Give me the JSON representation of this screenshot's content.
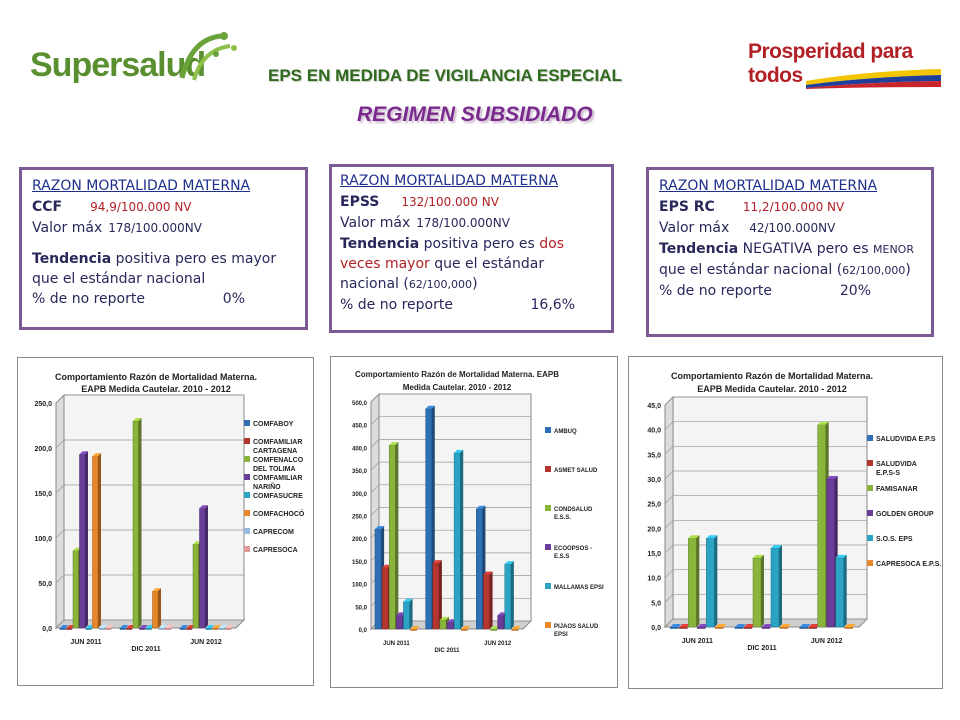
{
  "header": {
    "logo_text": "Supersalud",
    "slogan": "Prosperidad para todos",
    "title": "EPS EN MEDIDA DE VIGILANCIA ESPECIAL",
    "subtitle": "REGIMEN SUBSIDIADO"
  },
  "boxes": [
    {
      "heading": "RAZON MORTALIDAD MATERNA",
      "name": "CCF",
      "name_value": "94,9/100.000 NV",
      "max_label": "Valor máx",
      "max_value": "178/100.000NV",
      "trend_label": "Tendencia",
      "trend_text": "positiva pero es mayor que el estándar nacional",
      "report_label": "% de no reporte",
      "report_value": "0%"
    },
    {
      "heading": "RAZON MORTALIDAD MATERNA",
      "name": "EPSS",
      "name_value": "132/100.000 NV",
      "max_label": "Valor máx",
      "max_value": "178/100.000NV",
      "trend_label": "Tendencia",
      "trend_text_a": "positiva pero es",
      "trend_text_red": "dos veces mayor",
      "trend_text_b": "que el estándar nacional (",
      "trend_small": "62/100,000",
      "trend_close": ")",
      "report_label": "% de no reporte",
      "report_value": "16,6%"
    },
    {
      "heading": "RAZON MORTALIDAD MATERNA",
      "name": "EPS RC",
      "name_value": "11,2/100.000 NV",
      "max_label": "Valor máx",
      "max_value": "42/100.000NV",
      "trend_label": "Tendencia",
      "trend_text_a": "NEGATIVA pero es",
      "trend_small_a": "MENOR",
      "trend_text_b": "que el estándar nacional (",
      "trend_small": "62/100,000",
      "trend_close": ")",
      "report_label": "% de no reporte",
      "report_value": "20%"
    }
  ],
  "chart_data": [
    {
      "type": "bar",
      "title": "Comportamiento Razón de Mortalidad Materna. EAPB Medida Cautelar. 2010 - 2012",
      "title_lines": [
        "Comportamiento Razón de Mortalidad Materna.",
        "EAPB Medida Cautelar. 2010 - 2012"
      ],
      "categories": [
        "JUN 2011",
        "DIC 2011",
        "JUN 2012"
      ],
      "ylim": [
        0,
        250
      ],
      "yticks": [
        "0,0",
        "50,0",
        "100,0",
        "150,0",
        "200,0",
        "250,0"
      ],
      "grid": true,
      "legend_position": "right",
      "series": [
        {
          "name": "COMFABOY",
          "color": "#2f6fb5",
          "values": [
            0,
            0,
            0
          ]
        },
        {
          "name": "COMFAMILIAR CARTAGENA",
          "color": "#b5352f",
          "values": [
            0,
            0,
            0
          ]
        },
        {
          "name": "COMFENALCO DEL TOLIMA",
          "color": "#8ab43c",
          "values": [
            86,
            230,
            93
          ]
        },
        {
          "name": "COMFAMILIAR NARIÑO",
          "color": "#6a3d9a",
          "values": [
            193,
            0,
            133
          ]
        },
        {
          "name": "COMFASUCRE",
          "color": "#2aa3c4",
          "values": [
            0,
            0,
            0
          ]
        },
        {
          "name": "COMFACHOCÓ",
          "color": "#e8862a",
          "values": [
            191,
            41,
            0
          ]
        },
        {
          "name": "CAPRECOM",
          "color": "#9ab9e0",
          "values": [
            0,
            0,
            0
          ]
        },
        {
          "name": "CAPRESOCA",
          "color": "#e39a9a",
          "values": [
            0,
            0,
            0
          ]
        }
      ]
    },
    {
      "type": "bar",
      "title": "Comportamiento Razón de Mortalidad Materna. EAPB Medida Cautelar. 2010 - 2012",
      "title_lines": [
        "Comportamiento Razón de Mortalidad Materna. EAPB",
        "Medida Cautelar. 2010 - 2012"
      ],
      "categories": [
        "JUN 2011",
        "DIC 2011",
        "JUN 2012"
      ],
      "ylim": [
        0,
        500
      ],
      "yticks": [
        "0,0",
        "50,0",
        "100,0",
        "150,0",
        "200,0",
        "250,0",
        "300,0",
        "350,0",
        "400,0",
        "450,0",
        "500,0"
      ],
      "grid": true,
      "legend_position": "right",
      "series": [
        {
          "name": "AMBUQ",
          "color": "#2f6fb5",
          "values": [
            220,
            485,
            265
          ]
        },
        {
          "name": "ASMET SALUD",
          "color": "#b5352f",
          "values": [
            135,
            145,
            120
          ]
        },
        {
          "name": "CONDSALUD E.S.S.",
          "color": "#8ab43c",
          "values": [
            405,
            20,
            0
          ]
        },
        {
          "name": "ECOOPSOS - E.S.S",
          "color": "#6a3d9a",
          "values": [
            30,
            15,
            30
          ]
        },
        {
          "name": "MALLAMAS EPSI",
          "color": "#2aa3c4",
          "values": [
            60,
            388,
            143
          ]
        },
        {
          "name": "PIJAOS SALUD EPSI",
          "color": "#e8862a",
          "values": [
            0,
            0,
            0
          ]
        }
      ]
    },
    {
      "type": "bar",
      "title": "Comportamiento Razón de Mortalidad Materna. EAPB Medida Cautelar. 2010 - 2012",
      "title_lines": [
        "Comportamiento Razón de Mortalidad Materna.",
        "EAPB Medida Cautelar. 2010 - 2012"
      ],
      "categories": [
        "JUN 2011",
        "DIC 2011",
        "JUN 2012"
      ],
      "ylim": [
        0,
        45
      ],
      "yticks": [
        "0,0",
        "5,0",
        "10,0",
        "15,0",
        "20,0",
        "25,0",
        "30,0",
        "35,0",
        "40,0",
        "45,0"
      ],
      "grid": true,
      "legend_position": "right",
      "series": [
        {
          "name": "SALUDVIDA E.P.S",
          "color": "#2f6fb5",
          "values": [
            0,
            0,
            0
          ]
        },
        {
          "name": "SALUDVIDA E.P.S-S",
          "color": "#b5352f",
          "values": [
            0,
            0,
            0
          ]
        },
        {
          "name": "FAMISANAR",
          "color": "#8ab43c",
          "values": [
            18,
            14,
            41
          ]
        },
        {
          "name": "GOLDEN GROUP",
          "color": "#6a3d9a",
          "values": [
            0,
            0,
            30
          ]
        },
        {
          "name": "S.O.S. EPS",
          "color": "#2aa3c4",
          "values": [
            18,
            16,
            14
          ]
        },
        {
          "name": "CAPRESOCA E.P.S.",
          "color": "#e8862a",
          "values": [
            0,
            0,
            0
          ]
        }
      ]
    }
  ]
}
